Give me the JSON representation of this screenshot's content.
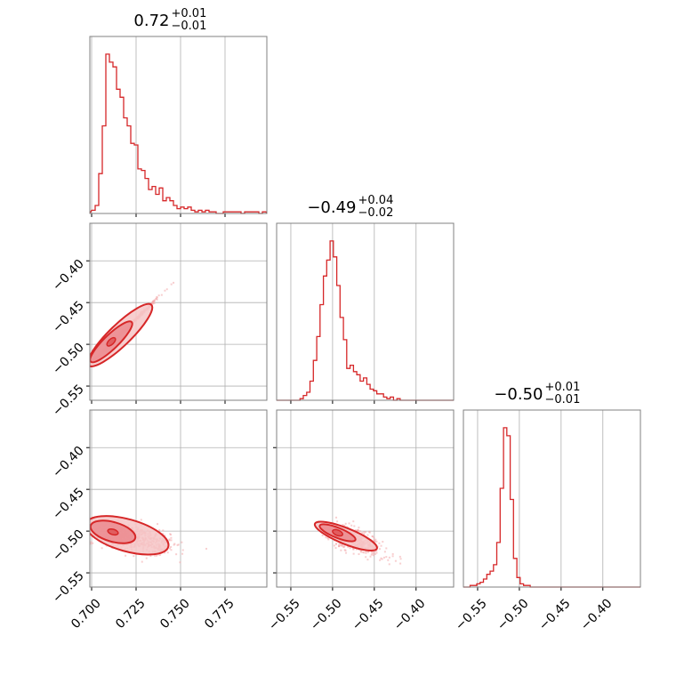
{
  "chart_data": {
    "type": "corner",
    "grid": true,
    "colors": {
      "main": "#d62728",
      "fill_light": "#f6c5c7",
      "fill_dark": "#eb8a8e",
      "scatter": "#f2a7aa",
      "frame": "#808080",
      "grid": "#b0b0b0"
    },
    "titles": [
      {
        "value": "0.72",
        "plus": "+0.01",
        "minus": "−0.01"
      },
      {
        "value": "−0.49",
        "plus": "+0.04",
        "minus": "−0.02"
      },
      {
        "value": "−0.50",
        "plus": "+0.01",
        "minus": "−0.01"
      }
    ],
    "parameters": [
      {
        "range": [
          0.699,
          0.7985
        ],
        "ticks": [
          0.7,
          0.725,
          0.75,
          0.775
        ],
        "tick_labels": [
          "0.700",
          "0.725",
          "0.750",
          "0.775"
        ],
        "histogram": {
          "bin_edges_start": 0.7,
          "bin_width": 0.002,
          "counts": [
            2,
            5,
            25,
            55,
            100,
            95,
            92,
            78,
            73,
            60,
            55,
            44,
            43,
            28,
            27,
            22,
            15,
            17,
            12,
            16,
            8,
            10,
            8,
            5,
            3,
            4,
            3,
            4,
            2,
            1,
            2,
            1,
            2,
            1,
            1,
            0,
            0,
            1,
            1,
            1,
            1,
            1,
            0,
            1,
            1,
            1,
            1,
            0,
            1
          ]
        }
      },
      {
        "range": [
          -0.567,
          -0.355
        ],
        "ticks": [
          -0.55,
          -0.5,
          -0.45,
          -0.4
        ],
        "tick_labels": [
          "−0.55",
          "−0.50",
          "−0.45",
          "−0.40"
        ],
        "histogram": {
          "bin_edges_start": -0.567,
          "bin_width": 0.004,
          "counts": [
            0,
            0,
            0,
            0,
            0,
            0,
            0,
            1,
            3,
            5,
            12,
            25,
            40,
            60,
            78,
            88,
            100,
            90,
            72,
            52,
            38,
            20,
            22,
            18,
            16,
            12,
            14,
            10,
            7,
            6,
            4,
            4,
            2,
            1,
            2,
            0,
            1,
            0,
            0,
            0,
            0,
            0,
            0,
            0,
            0,
            0,
            0,
            0,
            0,
            0,
            0,
            0,
            0
          ]
        }
      },
      {
        "range": [
          -0.567,
          -0.355
        ],
        "ticks": [
          -0.55,
          -0.5,
          -0.45,
          -0.4
        ],
        "tick_labels": [
          "−0.55",
          "−0.50",
          "−0.45",
          "−0.40"
        ],
        "histogram": {
          "bin_edges_start": -0.567,
          "bin_width": 0.004,
          "counts": [
            0,
            0,
            1,
            1,
            2,
            3,
            5,
            8,
            10,
            14,
            28,
            62,
            100,
            95,
            55,
            18,
            6,
            2,
            1,
            1,
            0,
            0,
            0,
            0,
            0,
            0,
            0,
            0,
            0,
            0,
            0,
            0,
            0,
            0,
            0,
            0,
            0,
            0,
            0,
            0,
            0,
            0,
            0,
            0,
            0,
            0,
            0,
            0,
            0,
            0,
            0,
            0,
            0
          ]
        }
      }
    ],
    "pairs": [
      {
        "x_param": 0,
        "y_param": 1,
        "center": [
          0.708,
          -0.505
        ],
        "direction": [
          0.018,
          0.037
        ],
        "spread": [
          0.03,
          0.006
        ],
        "contours": [
          {
            "level": "outer",
            "center": [
              0.716,
              -0.489
            ],
            "semi_axes": [
              0.0245,
              0.006
            ]
          },
          {
            "level": "inner",
            "center": [
              0.711,
              -0.497
            ],
            "semi_axes": [
              0.016,
              0.004
            ]
          }
        ]
      },
      {
        "x_param": 0,
        "y_param": 2,
        "center": [
          0.714,
          -0.503
        ],
        "direction": [
          0.02,
          -0.012
        ],
        "spread": [
          0.02,
          0.006
        ],
        "contours": [
          {
            "level": "outer",
            "center": [
              0.72,
              -0.505
            ],
            "semi_axes": [
              0.024,
              0.009
            ]
          },
          {
            "level": "inner",
            "center": [
              0.712,
              -0.501
            ],
            "semi_axes": [
              0.013,
              0.0055
            ]
          }
        ]
      },
      {
        "x_param": 1,
        "y_param": 2,
        "center": [
          -0.488,
          -0.505
        ],
        "direction": [
          0.03,
          -0.012
        ],
        "spread": [
          0.028,
          0.006
        ],
        "contours": [
          {
            "level": "outer",
            "center": [
              -0.484,
              -0.506
            ],
            "semi_axes": [
              0.04,
              0.0095
            ]
          },
          {
            "level": "inner",
            "center": [
              -0.494,
              -0.502
            ],
            "semi_axes": [
              0.023,
              0.006
            ]
          }
        ]
      }
    ]
  }
}
